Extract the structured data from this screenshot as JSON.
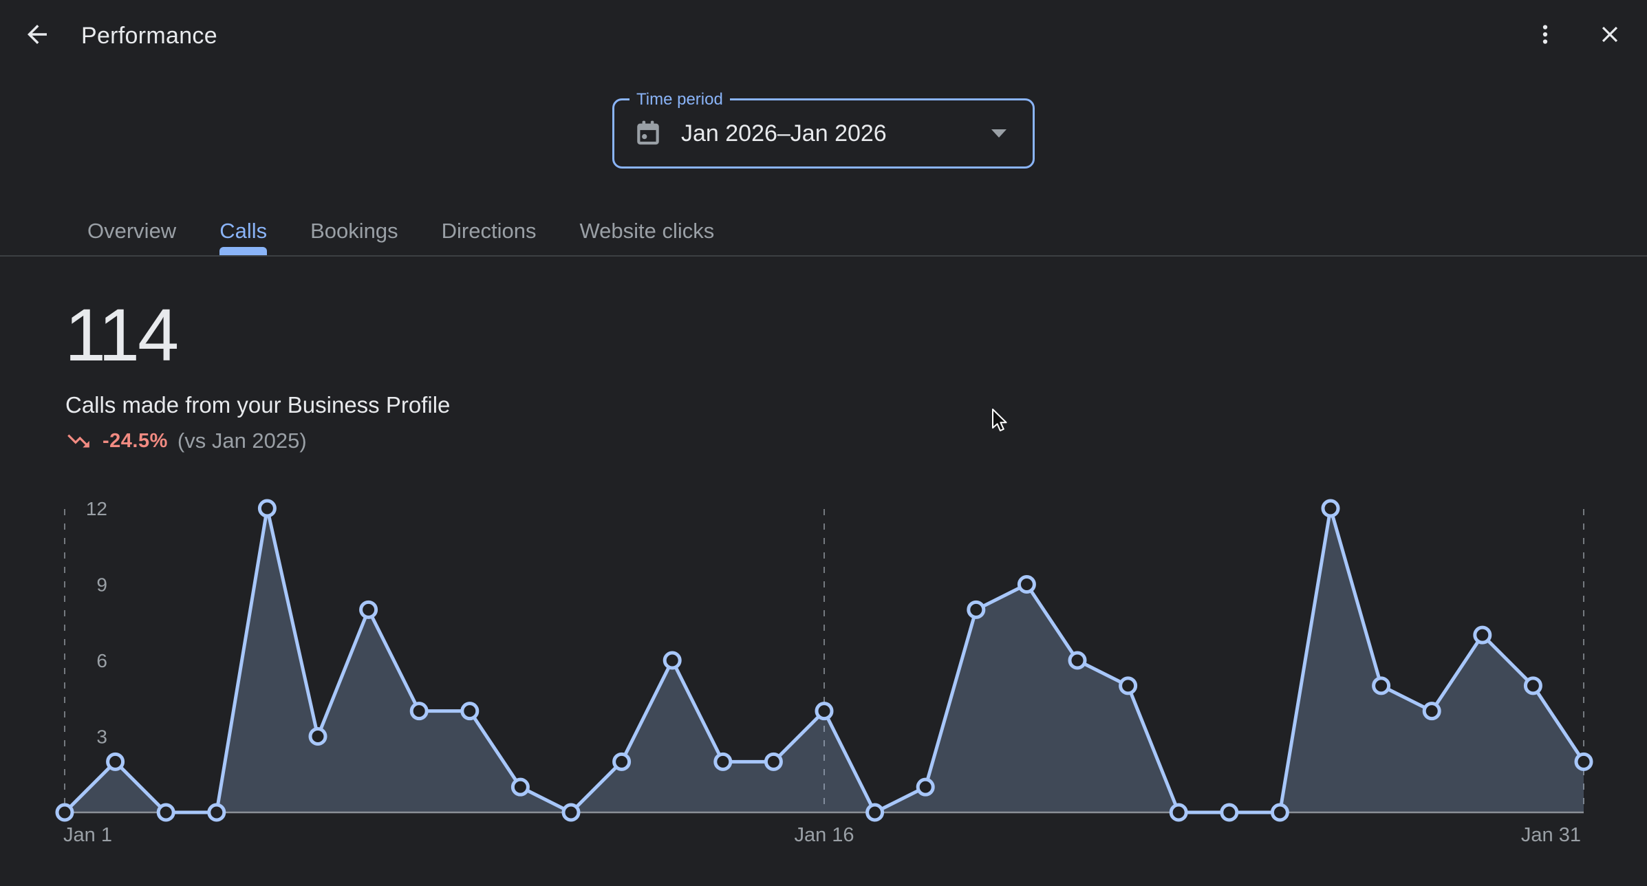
{
  "colors": {
    "background": "#202124",
    "accent_blue": "#8ab4f8",
    "negative_red": "#f28b82",
    "text_primary": "#e8eaed",
    "text_muted": "#9aa0a6",
    "divider": "#3c4043"
  },
  "header": {
    "title": "Performance"
  },
  "time_period": {
    "label": "Time period",
    "value": "Jan 2026–Jan 2026"
  },
  "tabs": [
    {
      "label": "Overview",
      "active": false
    },
    {
      "label": "Calls",
      "active": true
    },
    {
      "label": "Bookings",
      "active": false
    },
    {
      "label": "Directions",
      "active": false
    },
    {
      "label": "Website clicks",
      "active": false
    }
  ],
  "metric": {
    "value": "114",
    "description": "Calls made from your Business Profile",
    "delta": "-24.5%",
    "delta_direction": "down",
    "comparison": "(vs Jan 2025)"
  },
  "chart_data": {
    "type": "area",
    "categories": [
      "Jan 1",
      "Jan 2",
      "Jan 3",
      "Jan 4",
      "Jan 5",
      "Jan 6",
      "Jan 7",
      "Jan 8",
      "Jan 9",
      "Jan 10",
      "Jan 11",
      "Jan 12",
      "Jan 13",
      "Jan 14",
      "Jan 15",
      "Jan 16",
      "Jan 17",
      "Jan 18",
      "Jan 19",
      "Jan 20",
      "Jan 21",
      "Jan 22",
      "Jan 23",
      "Jan 24",
      "Jan 25",
      "Jan 26",
      "Jan 27",
      "Jan 28",
      "Jan 29",
      "Jan 30",
      "Jan 31"
    ],
    "values": [
      0,
      2,
      0,
      0,
      12,
      3,
      8,
      4,
      4,
      1,
      0,
      2,
      6,
      2,
      2,
      4,
      0,
      1,
      8,
      9,
      6,
      5,
      0,
      0,
      0,
      12,
      5,
      4,
      7,
      5,
      2
    ],
    "total": 114,
    "ylim": [
      0,
      12
    ],
    "yticks": [
      3,
      6,
      9,
      12
    ],
    "x_tick_labels": [
      "Jan 1",
      "Jan 16",
      "Jan 31"
    ],
    "x_gridline_indices": [
      0,
      15,
      30
    ],
    "grid_style": "dashed-vertical",
    "legend": "none",
    "line_color": "#a8c7fa",
    "area_fill": "rgba(168,199,250,0.24)",
    "point_fill": "#202124",
    "axis_line_color": "#8b9097",
    "gridline_color": "#757a80",
    "tick_label_color": "#9aa0a6"
  }
}
